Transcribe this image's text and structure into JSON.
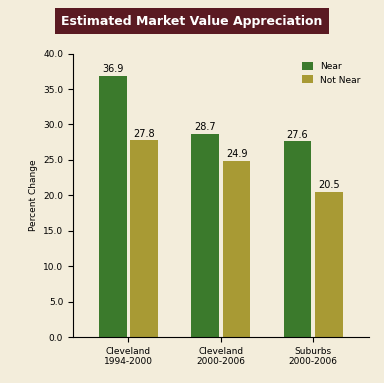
{
  "chart_data": {
    "type": "bar",
    "title": "Estimated Market Value Appreciation",
    "y_label": "Percent Change",
    "categories": [
      "Cleveland 1994-2000",
      "Cleveland 2000-2006",
      "Suburbs 2000-2006"
    ],
    "series": [
      {
        "name": "Near",
        "color": "#3b7a2c",
        "values": [
          36.9,
          28.7,
          27.6
        ]
      },
      {
        "name": "Not Near",
        "color": "#a89a34",
        "values": [
          27.8,
          24.9,
          20.5
        ]
      }
    ],
    "ylim": [
      0,
      40
    ],
    "yticks": [
      {
        "value": 0,
        "label": "0.0"
      },
      {
        "value": 5,
        "label": "5.0"
      },
      {
        "value": 10,
        "label": "10.0"
      },
      {
        "value": 15,
        "label": "15.0"
      },
      {
        "value": 20,
        "label": "20.0"
      },
      {
        "value": 25,
        "label": "25.0"
      },
      {
        "value": 30,
        "label": "30.0"
      },
      {
        "value": 35,
        "label": "35.0"
      },
      {
        "value": 40,
        "label": "40.0"
      }
    ],
    "grid": false,
    "legend": "upper right",
    "data_labels": true
  }
}
